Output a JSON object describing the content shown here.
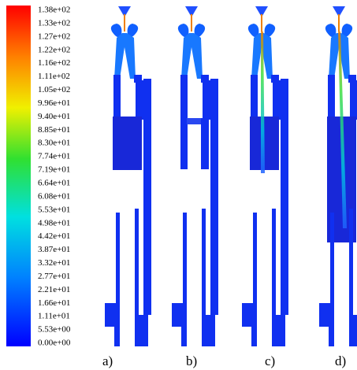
{
  "colorbar": {
    "labels": [
      "1.38e+02",
      "1.33e+02",
      "1.27e+02",
      "1.22e+02",
      "1.16e+02",
      "1.11e+02",
      "1.05e+02",
      "9.96e+01",
      "9.40e+01",
      "8.85e+01",
      "8.30e+01",
      "7.74e+01",
      "7.19e+01",
      "6.64e+01",
      "6.08e+01",
      "5.53e+01",
      "4.98e+01",
      "4.42e+01",
      "3.87e+01",
      "3.32e+01",
      "2.77e+01",
      "2.21e+01",
      "1.66e+01",
      "1.11e+01",
      "5.53e+00",
      "0.00e+00"
    ]
  },
  "panels": [
    {
      "label": "a)"
    },
    {
      "label": "b)"
    },
    {
      "label": "c)"
    },
    {
      "label": "d)"
    }
  ]
}
